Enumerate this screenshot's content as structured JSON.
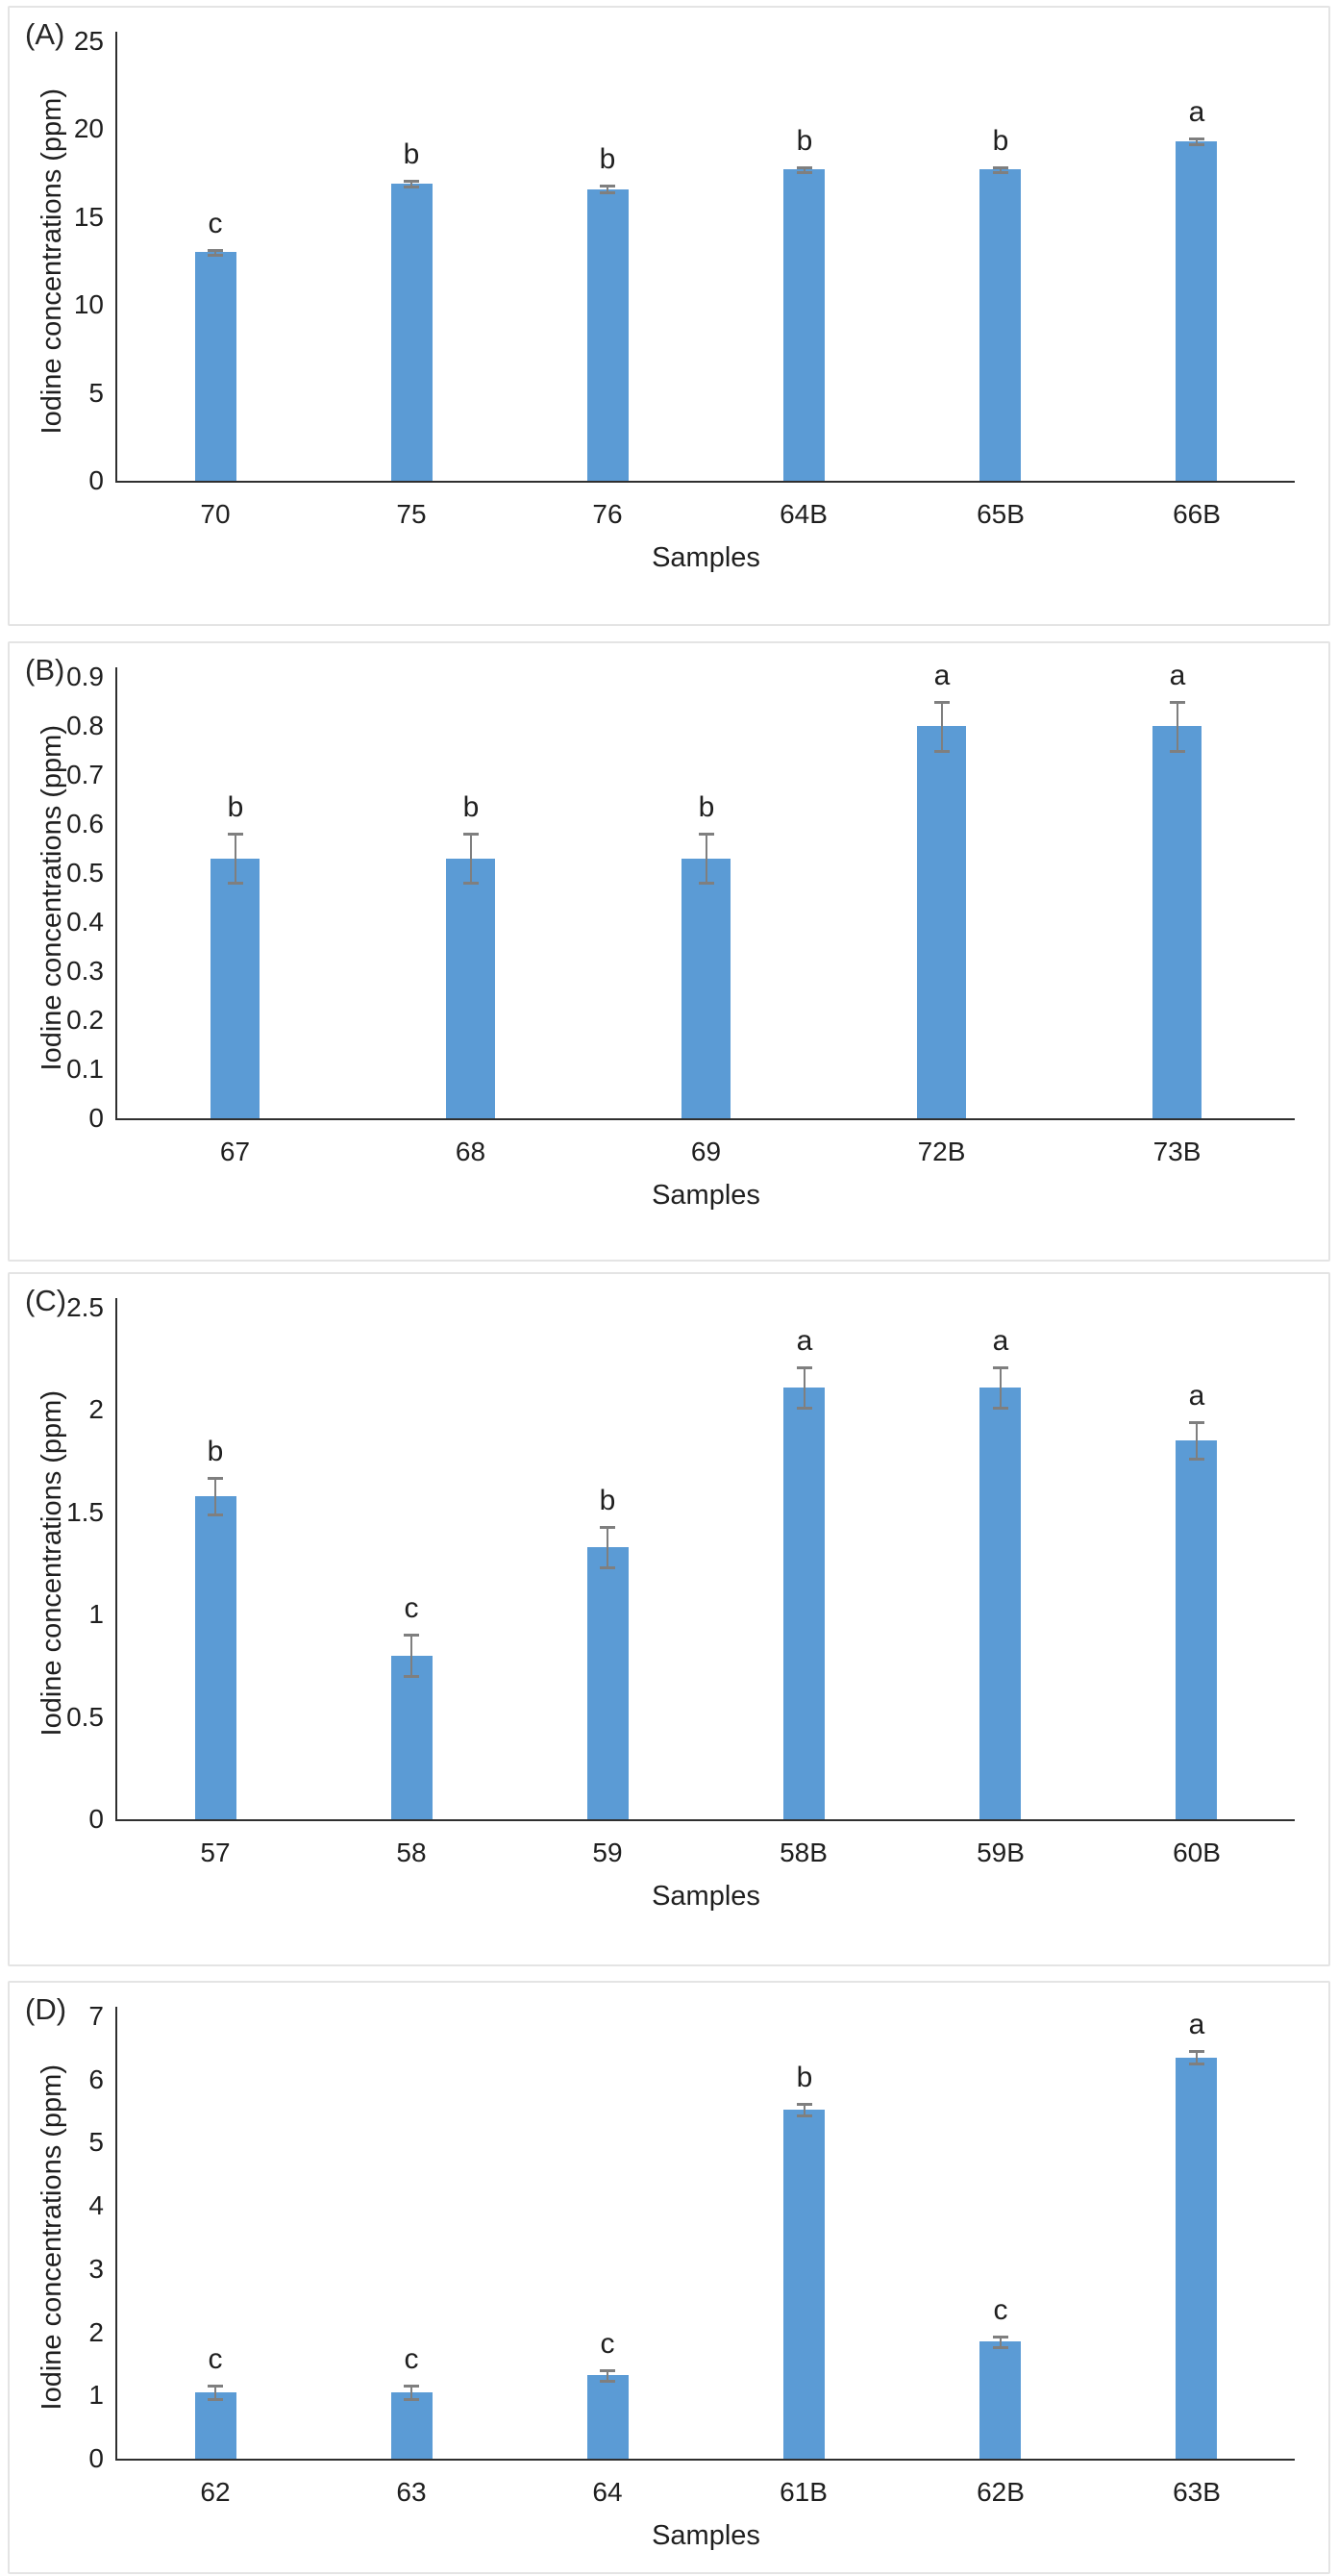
{
  "figure": {
    "background": "#ffffff",
    "panel_border": "#e4e4e4"
  },
  "colors": {
    "bar": "#5B9BD5",
    "error_bar": "#7f7f7f",
    "axis": "#2f2f2f",
    "text": "#1f1f1f"
  },
  "chart_data": [
    {
      "type": "bar",
      "panel_label": "(A)",
      "ylabel": "Iodine concentrations (ppm)",
      "xlabel": "Samples",
      "ylim": [
        0,
        25
      ],
      "tick_labels": [
        "0",
        "5",
        "10",
        "15",
        "20",
        "25"
      ],
      "grid": false,
      "legend": null,
      "categories": [
        "70",
        "75",
        "76",
        "64B",
        "65B",
        "66B"
      ],
      "values": [
        13.0,
        16.9,
        16.6,
        17.7,
        17.7,
        19.3
      ],
      "errors": [
        0.15,
        0.18,
        0.18,
        0.12,
        0.12,
        0.15
      ],
      "letters": [
        "c",
        "b",
        "b",
        "b",
        "b",
        "a"
      ]
    },
    {
      "type": "bar",
      "panel_label": "(B)",
      "ylabel": "Iodine concentrations (ppm)",
      "xlabel": "Samples",
      "ylim": [
        0,
        0.9
      ],
      "tick_labels": [
        "0",
        "0.1",
        "0.2",
        "0.3",
        "0.4",
        "0.5",
        "0.6",
        "0.7",
        "0.8",
        "0.9"
      ],
      "grid": false,
      "legend": null,
      "categories": [
        "67",
        "68",
        "69",
        "72B",
        "73B"
      ],
      "values": [
        0.53,
        0.53,
        0.53,
        0.8,
        0.8
      ],
      "errors": [
        0.05,
        0.05,
        0.05,
        0.05,
        0.05
      ],
      "letters": [
        "b",
        "b",
        "b",
        "a",
        "a"
      ]
    },
    {
      "type": "bar",
      "panel_label": "(C)",
      "ylabel": "Iodine concentrations (ppm)",
      "xlabel": "Samples",
      "ylim": [
        0,
        2.5
      ],
      "tick_labels": [
        "0",
        "0.5",
        "1",
        "1.5",
        "2",
        "2.5"
      ],
      "grid": false,
      "legend": null,
      "categories": [
        "57",
        "58",
        "59",
        "58B",
        "59B",
        "60B"
      ],
      "values": [
        1.58,
        0.8,
        1.33,
        2.11,
        2.11,
        1.85
      ],
      "errors": [
        0.09,
        0.1,
        0.1,
        0.1,
        0.1,
        0.09
      ],
      "letters": [
        "b",
        "c",
        "b",
        "a",
        "a",
        "a"
      ]
    },
    {
      "type": "bar",
      "panel_label": "(D)",
      "ylabel": "Iodine concentrations (ppm)",
      "xlabel": "Samples",
      "ylim": [
        0,
        7
      ],
      "tick_labels": [
        "0",
        "1",
        "2",
        "3",
        "4",
        "5",
        "6",
        "7"
      ],
      "grid": false,
      "legend": null,
      "categories": [
        "62",
        "63",
        "64",
        "61B",
        "62B",
        "63B"
      ],
      "values": [
        1.05,
        1.05,
        1.32,
        5.52,
        1.85,
        6.35
      ],
      "errors": [
        0.1,
        0.1,
        0.08,
        0.09,
        0.08,
        0.1
      ],
      "letters": [
        "c",
        "c",
        "c",
        "b",
        "c",
        "a"
      ]
    }
  ]
}
